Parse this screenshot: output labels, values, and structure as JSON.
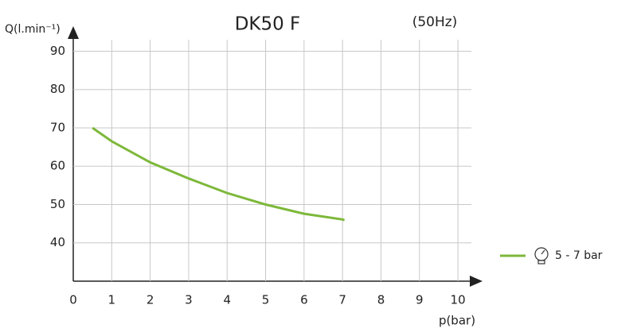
{
  "chart_data": {
    "type": "line",
    "title": "DK50 F",
    "subtitle": "(50Hz)",
    "x_label": "p(bar)",
    "y_label": "Q(l.min⁻¹)",
    "series": [
      {
        "name": "5 - 7 bar",
        "color": "#7db83a",
        "x": [
          0.5,
          1,
          2,
          3,
          4,
          5,
          6,
          7,
          7.05
        ],
        "values": [
          70,
          66.5,
          61,
          56.8,
          53,
          50,
          47.6,
          46.1,
          45.9
        ]
      }
    ],
    "xlim": [
      0,
      10.35
    ],
    "ylim": [
      30,
      93
    ],
    "xticks": [
      0,
      1,
      2,
      3,
      4,
      5,
      6,
      7,
      8,
      9,
      10
    ],
    "yticks": [
      40,
      50,
      60,
      70,
      80,
      90
    ],
    "grid": true,
    "legend": "right"
  }
}
